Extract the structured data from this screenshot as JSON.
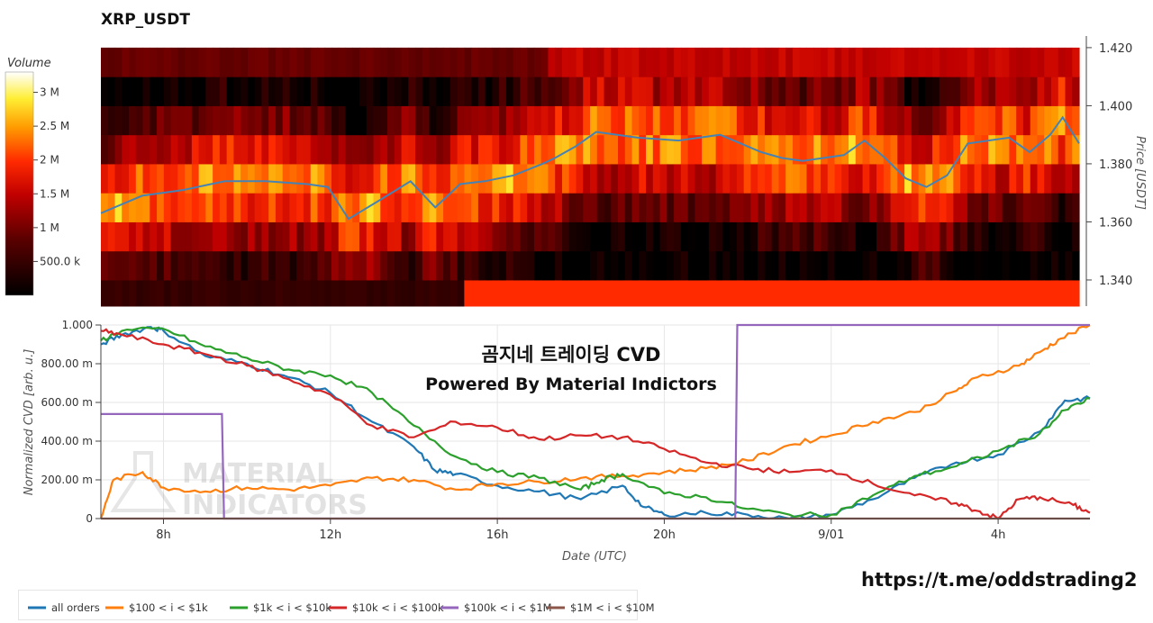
{
  "title": "XRP_USDT",
  "watermark": {
    "line1": "곰지네 트레이딩 CVD",
    "line2": "Powered By Material Indictors",
    "logo_line1": "MATERIAL",
    "logo_line2": "INDICATORS"
  },
  "link": "https://t.me/oddstrading2",
  "colors": {
    "all_orders": "#1f77b4",
    "s100_1k": "#ff7f0e",
    "s1k_10k": "#2ca02c",
    "s10k_100k": "#d62728",
    "s100k_1m": "#9467bd",
    "s1m_10m": "#8c564b",
    "price_line": "#4682b4"
  },
  "chart_data": [
    {
      "type": "heatmap",
      "title": "XRP_USDT",
      "colorbar": {
        "label": "Volume",
        "ticks": [
          "500.0 k",
          "1 M",
          "1.5 M",
          "2 M",
          "2.5 M",
          "3 M"
        ],
        "tick_values": [
          0.5,
          1.0,
          1.5,
          2.0,
          2.5,
          3.0
        ],
        "range": [
          0,
          3.3
        ]
      },
      "y_axis": {
        "label": "Price [USDT]",
        "ticks": [
          "1.340",
          "1.360",
          "1.380",
          "1.400",
          "1.420"
        ],
        "tick_values": [
          1.34,
          1.36,
          1.38,
          1.4,
          1.42
        ],
        "range": [
          1.331,
          1.424
        ],
        "position": "right"
      },
      "x_range": [
        6.5,
        30.2
      ],
      "price_levels": [
        1.335,
        1.345,
        1.355,
        1.365,
        1.375,
        1.385,
        1.395,
        1.405,
        1.415
      ],
      "price_line": {
        "x": [
          6.5,
          7.5,
          8.5,
          9.5,
          10.5,
          11.5,
          12.0,
          12.5,
          13.2,
          14.0,
          14.6,
          15.2,
          15.8,
          16.5,
          17.2,
          17.5,
          18.0,
          18.5,
          19.5,
          20.5,
          21.5,
          22.5,
          23.0,
          23.5,
          24.5,
          25.0,
          25.5,
          26.0,
          26.5,
          27.0,
          27.5,
          28.5,
          29.0,
          29.5,
          29.8,
          30.2
        ],
        "y": [
          1.363,
          1.369,
          1.371,
          1.374,
          1.374,
          1.373,
          1.372,
          1.361,
          1.367,
          1.374,
          1.365,
          1.373,
          1.374,
          1.376,
          1.38,
          1.382,
          1.386,
          1.391,
          1.389,
          1.388,
          1.39,
          1.384,
          1.382,
          1.381,
          1.383,
          1.388,
          1.382,
          1.375,
          1.372,
          1.376,
          1.387,
          1.389,
          1.384,
          1.39,
          1.396,
          1.387
        ]
      }
    },
    {
      "type": "line",
      "y_axis": {
        "label": "Normalized CVD [arb. u.]",
        "ticks": [
          "0",
          "200.00 m",
          "400.00 m",
          "600.00 m",
          "800.00 m",
          "1.000"
        ],
        "tick_values": [
          0,
          0.2,
          0.4,
          0.6,
          0.8,
          1.0
        ],
        "range": [
          0,
          1.0
        ]
      },
      "x_axis": {
        "label": "Date (UTC)",
        "ticks": [
          "8h",
          "12h",
          "16h",
          "20h",
          "9/01",
          "4h"
        ],
        "tick_values": [
          8,
          12,
          16,
          20,
          24,
          28
        ],
        "range": [
          6.5,
          30.2
        ]
      },
      "grid": true,
      "legend": "bottom",
      "series": [
        {
          "name": "all orders",
          "color": "#1f77b4",
          "x": [
            6.5,
            7.0,
            7.7,
            8.0,
            9.0,
            10.0,
            11.0,
            12.0,
            13.0,
            14.0,
            14.5,
            15.0,
            16.0,
            17.0,
            18.0,
            19.0,
            19.5,
            20.0,
            21.0,
            22.0,
            23.0,
            24.0,
            25.0,
            26.0,
            27.0,
            28.0,
            29.0,
            29.6,
            30.2
          ],
          "y": [
            0.9,
            0.95,
            0.99,
            0.97,
            0.84,
            0.8,
            0.73,
            0.65,
            0.5,
            0.37,
            0.25,
            0.23,
            0.17,
            0.14,
            0.1,
            0.17,
            0.06,
            0.02,
            0.03,
            0.02,
            0.0,
            0.02,
            0.1,
            0.21,
            0.29,
            0.33,
            0.45,
            0.61,
            0.62
          ]
        },
        {
          "name": "$100 < i < $1k",
          "color": "#ff7f0e",
          "x": [
            6.5,
            6.8,
            7.5,
            8.0,
            9.0,
            10.0,
            11.0,
            12.0,
            13.0,
            14.0,
            15.0,
            16.0,
            17.0,
            18.0,
            19.0,
            20.0,
            21.0,
            22.0,
            23.0,
            24.0,
            25.0,
            26.0,
            27.0,
            27.5,
            28.5,
            29.0,
            29.5,
            30.2
          ],
          "y": [
            0.0,
            0.2,
            0.24,
            0.16,
            0.14,
            0.16,
            0.15,
            0.17,
            0.21,
            0.2,
            0.15,
            0.18,
            0.19,
            0.21,
            0.22,
            0.24,
            0.26,
            0.3,
            0.38,
            0.43,
            0.5,
            0.55,
            0.66,
            0.73,
            0.79,
            0.86,
            0.93,
            1.0
          ]
        },
        {
          "name": "$1k < i < $10k",
          "color": "#2ca02c",
          "x": [
            6.5,
            7.0,
            8.0,
            9.0,
            10.0,
            11.0,
            12.0,
            13.0,
            14.0,
            15.0,
            16.0,
            17.0,
            18.0,
            18.5,
            19.0,
            20.0,
            21.0,
            22.0,
            23.0,
            24.0,
            25.0,
            26.0,
            27.0,
            28.0,
            29.0,
            29.6,
            30.2
          ],
          "y": [
            0.92,
            0.97,
            0.98,
            0.89,
            0.83,
            0.77,
            0.74,
            0.65,
            0.48,
            0.32,
            0.24,
            0.21,
            0.15,
            0.2,
            0.23,
            0.13,
            0.11,
            0.05,
            0.02,
            0.02,
            0.12,
            0.22,
            0.27,
            0.35,
            0.44,
            0.56,
            0.62
          ]
        },
        {
          "name": "$10k < i < $100k",
          "color": "#d62728",
          "x": [
            6.5,
            7.0,
            8.0,
            9.0,
            10.0,
            11.0,
            12.0,
            13.0,
            14.0,
            15.0,
            16.0,
            17.0,
            18.0,
            19.0,
            20.0,
            21.0,
            22.0,
            23.0,
            24.0,
            25.0,
            26.0,
            27.0,
            27.5,
            28.0,
            28.5,
            29.0,
            29.8,
            30.2
          ],
          "y": [
            0.97,
            0.95,
            0.9,
            0.85,
            0.79,
            0.72,
            0.64,
            0.48,
            0.42,
            0.5,
            0.47,
            0.41,
            0.43,
            0.42,
            0.36,
            0.29,
            0.26,
            0.24,
            0.25,
            0.18,
            0.12,
            0.08,
            0.04,
            0.0,
            0.1,
            0.11,
            0.07,
            0.03
          ]
        },
        {
          "name": "$100k < i < $1M",
          "color": "#9467bd",
          "x": [
            6.5,
            9.4,
            9.45,
            21.7,
            21.75,
            30.2
          ],
          "y": [
            0.54,
            0.54,
            0.0,
            0.0,
            1.0,
            1.0
          ]
        },
        {
          "name": "$1M < i < $10M",
          "color": "#8c564b",
          "x": [
            6.5,
            30.2
          ],
          "y": [
            0.0,
            0.0
          ]
        }
      ]
    }
  ]
}
